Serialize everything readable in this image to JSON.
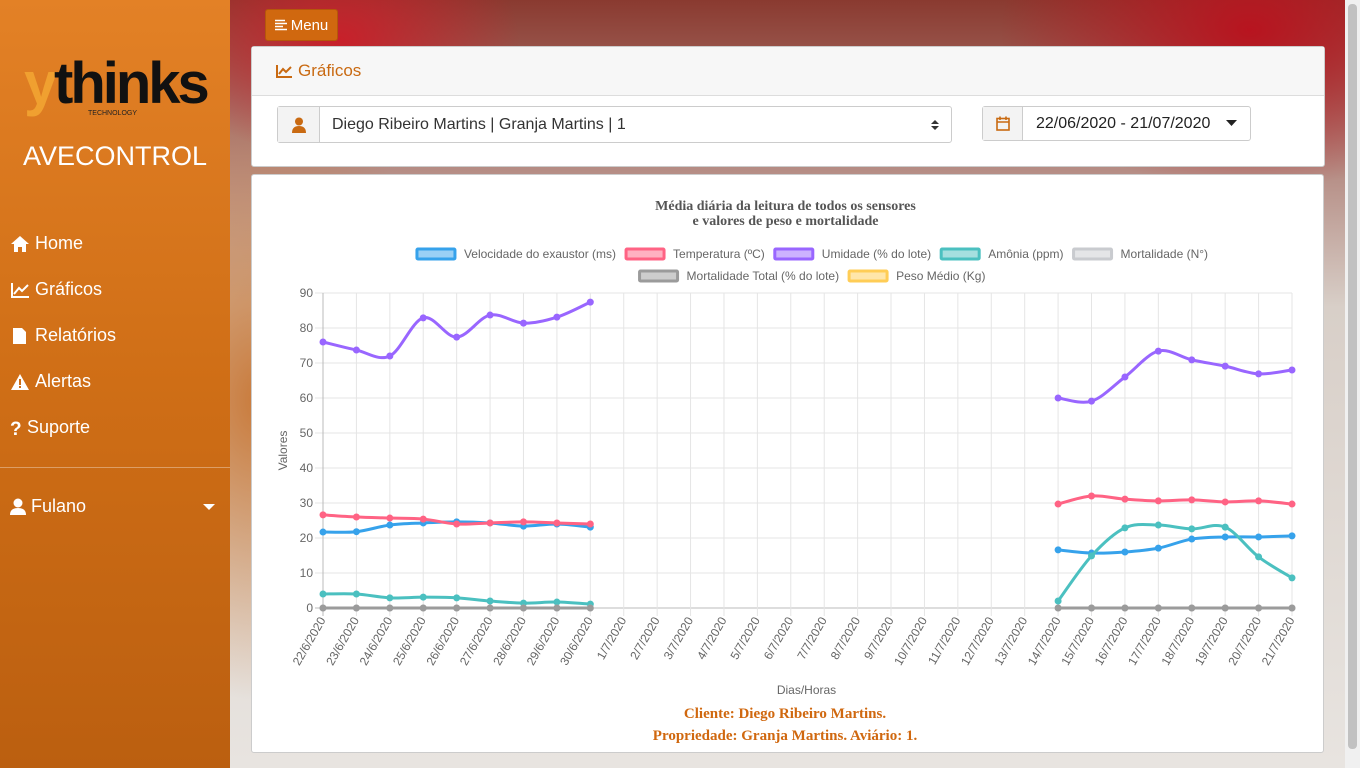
{
  "menu_button": "Menu",
  "sidebar": {
    "logo": "thinks",
    "logo_sub": "TECHNOLOGY",
    "app_name": "AVECONTROL",
    "nav": [
      "Home",
      "Gráficos",
      "Relatórios",
      "Alertas",
      "Suporte"
    ],
    "user": "Fulano"
  },
  "panel": {
    "title": "Gráficos",
    "client_select": "Diego Ribeiro Martins | Granja Martins | 1",
    "date_range": "22/06/2020 - 21/07/2020"
  },
  "chart_data": {
    "type": "line",
    "title": [
      "Média diária da leitura de todos os sensores",
      "e valores de peso e mortalidade"
    ],
    "x_label": "Dias/Horas",
    "y_label": "Valores",
    "categories": [
      "22/6/2020",
      "23/6/2020",
      "24/6/2020",
      "25/6/2020",
      "26/6/2020",
      "27/6/2020",
      "28/6/2020",
      "29/6/2020",
      "30/6/2020",
      "1/7/2020",
      "2/7/2020",
      "3/7/2020",
      "4/7/2020",
      "5/7/2020",
      "6/7/2020",
      "7/7/2020",
      "8/7/2020",
      "9/7/2020",
      "10/7/2020",
      "11/7/2020",
      "12/7/2020",
      "13/7/2020",
      "14/7/2020",
      "15/7/2020",
      "16/7/2020",
      "17/7/2020",
      "18/7/2020",
      "19/7/2020",
      "20/7/2020",
      "21/7/2020"
    ],
    "ylim": [
      0,
      90
    ],
    "yticks": [
      0,
      10,
      20,
      30,
      40,
      50,
      60,
      70,
      80,
      90
    ],
    "grid": true,
    "series": [
      {
        "name": "Velocidade do exaustor (ms)",
        "color": "#36a2eb",
        "values": [
          21.7,
          21.8,
          23.7,
          24.3,
          24.6,
          24.3,
          23.4,
          24,
          23.1,
          null,
          null,
          null,
          null,
          null,
          null,
          null,
          null,
          null,
          null,
          null,
          null,
          null,
          16.6,
          15.7,
          16,
          17.1,
          19.7,
          20.3,
          20.3,
          20.6
        ]
      },
      {
        "name": "Temperatura (ºC)",
        "color": "#ff6384",
        "values": [
          26.6,
          26,
          25.7,
          25.4,
          24,
          24.3,
          24.6,
          24.3,
          24,
          null,
          null,
          null,
          null,
          null,
          null,
          null,
          null,
          null,
          null,
          null,
          null,
          null,
          29.7,
          32,
          31.1,
          30.6,
          30.9,
          30.3,
          30.6,
          29.7
        ]
      },
      {
        "name": "Umidade (% do lote)",
        "color": "#9966ff",
        "values": [
          76,
          73.7,
          72,
          82.9,
          77.4,
          83.7,
          81.4,
          83.1,
          87.4,
          null,
          null,
          null,
          null,
          null,
          null,
          null,
          null,
          null,
          null,
          null,
          null,
          null,
          60,
          59.1,
          66,
          73.4,
          70.9,
          69.1,
          66.9,
          68
        ]
      },
      {
        "name": "Amônia (ppm)",
        "color": "#4bc0c0",
        "values": [
          4,
          4,
          2.9,
          3.1,
          2.9,
          2,
          1.4,
          1.7,
          1.1,
          null,
          null,
          null,
          null,
          null,
          null,
          null,
          null,
          null,
          null,
          null,
          null,
          null,
          2,
          14.9,
          22.9,
          23.7,
          22.6,
          23.1,
          14.6,
          8.6
        ]
      },
      {
        "name": "Mortalidade (N°)",
        "color": "#c9cbcf",
        "values": [
          0,
          0,
          0,
          0,
          0,
          0,
          0,
          0,
          0,
          null,
          null,
          null,
          null,
          null,
          null,
          null,
          null,
          null,
          null,
          null,
          null,
          null,
          0,
          0,
          0,
          0,
          0,
          0,
          0,
          0
        ]
      },
      {
        "name": "Mortalidade Total (% do lote)",
        "color": "#9b9b9b",
        "values": [
          0,
          0,
          0,
          0,
          0,
          0,
          0,
          0,
          0,
          null,
          null,
          null,
          null,
          null,
          null,
          null,
          null,
          null,
          null,
          null,
          null,
          null,
          0,
          0,
          0,
          0,
          0,
          0,
          0,
          0
        ]
      },
      {
        "name": "Peso Médio (Kg)",
        "color": "#ffcd56",
        "values": [
          null,
          null,
          null,
          null,
          null,
          null,
          null,
          null,
          null,
          null,
          null,
          null,
          null,
          null,
          null,
          null,
          null,
          null,
          null,
          null,
          null,
          null,
          null,
          null,
          null,
          null,
          null,
          null,
          null,
          null
        ]
      }
    ]
  },
  "chart_footer": [
    "Cliente: Diego Ribeiro Martins.",
    "Propriedade: Granja Martins. Aviário: 1."
  ]
}
